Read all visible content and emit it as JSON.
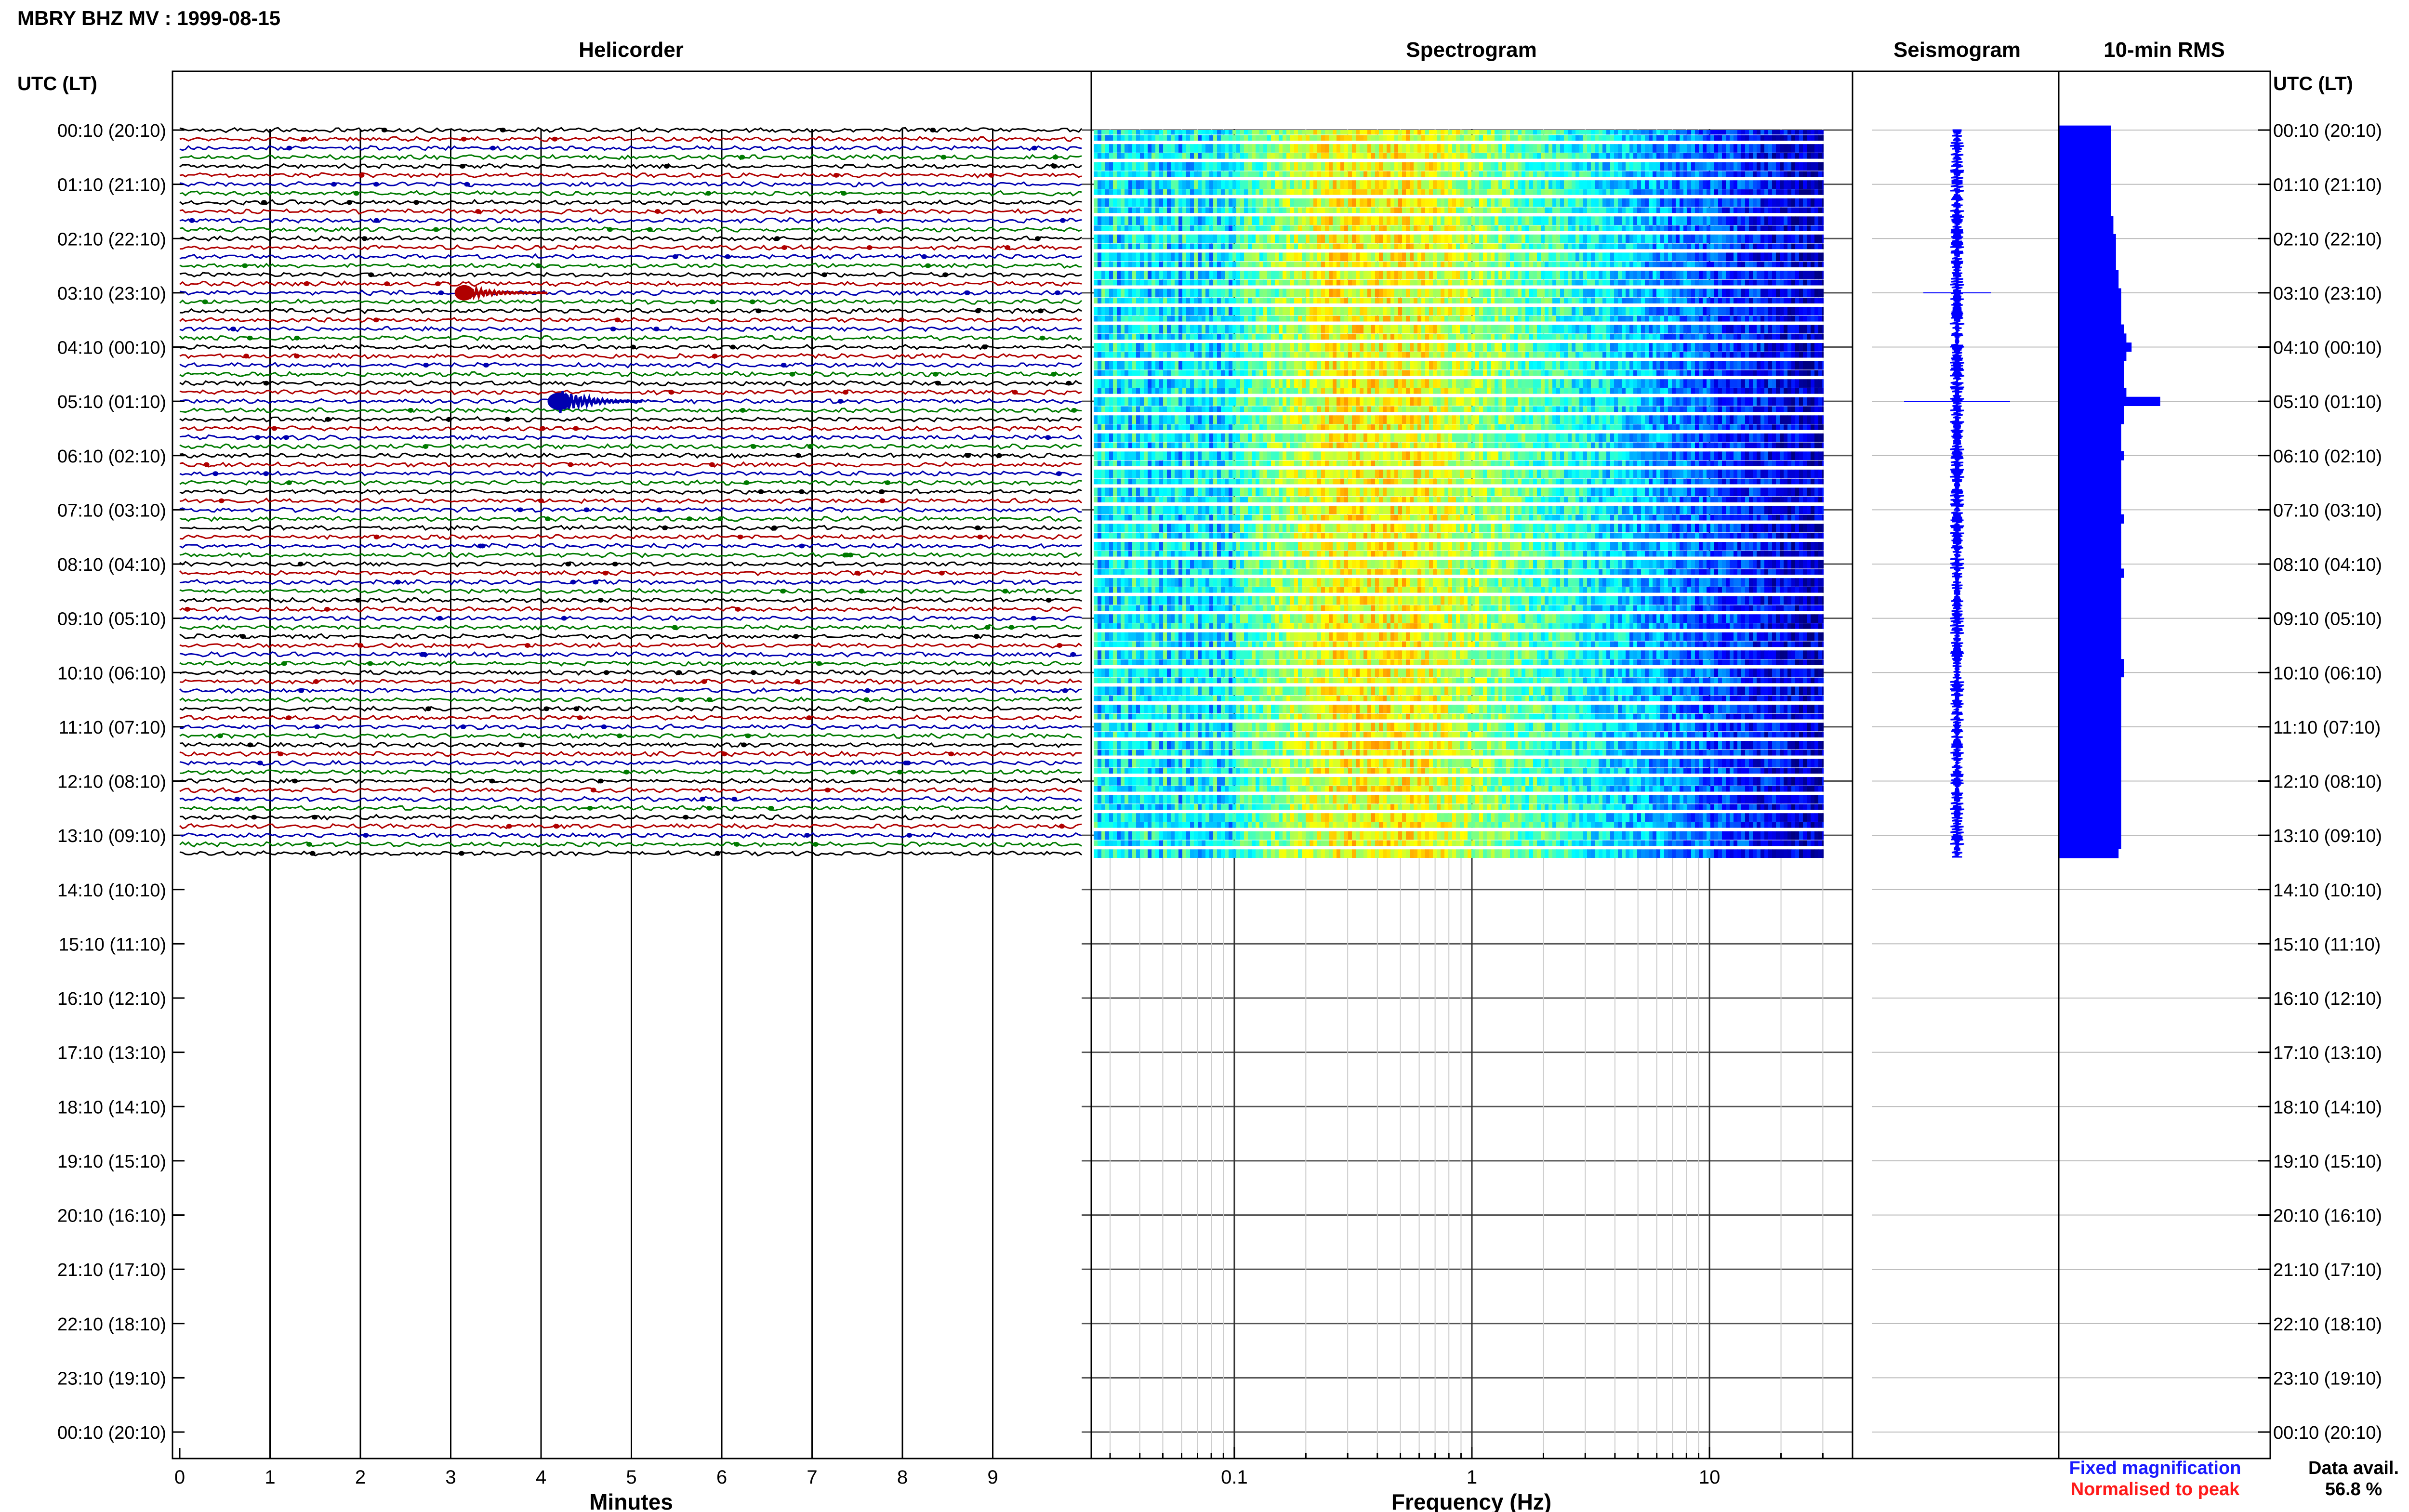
{
  "header": {
    "title": "MBRY BHZ MV : 1999-08-15"
  },
  "panels": {
    "helicorder": "Helicorder",
    "spectrogram": "Spectrogram",
    "seismogram": "Seismogram",
    "rms": "10-min RMS"
  },
  "axes": {
    "time_header_left": "UTC (LT)",
    "time_header_right": "UTC (LT)",
    "minutes_label": "Minutes",
    "frequency_label": "Frequency (Hz)",
    "minute_ticks": [
      "0",
      "1",
      "2",
      "3",
      "4",
      "5",
      "6",
      "7",
      "8",
      "9"
    ],
    "frequency_ticks": [
      "0.1",
      "1",
      "10"
    ],
    "time_labels": [
      "00:10 (20:10)",
      "01:10 (21:10)",
      "02:10 (22:10)",
      "03:10 (23:10)",
      "04:10 (00:10)",
      "05:10 (01:10)",
      "06:10 (02:10)",
      "07:10 (03:10)",
      "08:10 (04:10)",
      "09:10 (05:10)",
      "10:10 (06:10)",
      "11:10 (07:10)",
      "12:10 (08:10)",
      "13:10 (09:10)",
      "14:10 (10:10)",
      "15:10 (11:10)",
      "16:10 (12:10)",
      "17:10 (13:10)",
      "18:10 (14:10)",
      "19:10 (15:10)",
      "20:10 (16:10)",
      "21:10 (17:10)",
      "22:10 (18:10)",
      "23:10 (19:10)",
      "00:10 (20:10)"
    ]
  },
  "legend": {
    "fixed": "Fixed magnification",
    "normalised": "Normalised to peak",
    "fixed_color": "#1a1aff",
    "normalised_color": "#ff1a1a"
  },
  "footer": {
    "data_avail_label": "Data avail.",
    "data_avail_value": "56.8 %"
  },
  "colors": {
    "trace_cycle": [
      "#000000",
      "#b00000",
      "#0000b0",
      "#007a00"
    ],
    "rms_bar": "#0000ff",
    "seismogram": "#0000ff"
  },
  "chart_data": {
    "type": "helicorder",
    "traces_recorded": 81,
    "minutes_per_trace": 10,
    "minute_range": [
      0,
      10
    ],
    "frequency_range_hz": [
      0.025,
      40
    ],
    "frequency_scale": "log",
    "events": [
      {
        "trace_index": 18,
        "minute": 3.15,
        "color": "#b00000"
      },
      {
        "trace_index": 30,
        "minute": 4.2,
        "color": "#0000b0"
      }
    ],
    "rms_values": [
      1.0,
      1.0,
      1.0,
      1.0,
      1.0,
      1.0,
      1.0,
      1.0,
      1.0,
      1.0,
      1.05,
      1.05,
      1.1,
      1.1,
      1.1,
      1.1,
      1.15,
      1.15,
      1.2,
      1.2,
      1.2,
      1.2,
      1.25,
      1.3,
      1.4,
      1.3,
      1.25,
      1.25,
      1.25,
      1.3,
      1.95,
      1.25,
      1.25,
      1.2,
      1.2,
      1.2,
      1.25,
      1.2,
      1.2,
      1.2,
      1.2,
      1.2,
      1.2,
      1.25,
      1.2,
      1.2,
      1.2,
      1.2,
      1.2,
      1.25,
      1.2,
      1.2,
      1.2,
      1.2,
      1.2,
      1.2,
      1.2,
      1.2,
      1.2,
      1.25,
      1.25,
      1.2,
      1.2,
      1.2,
      1.2,
      1.2,
      1.2,
      1.2,
      1.2,
      1.2,
      1.2,
      1.2,
      1.2,
      1.2,
      1.2,
      1.2,
      1.2,
      1.2,
      1.2,
      1.2,
      1.15
    ]
  }
}
